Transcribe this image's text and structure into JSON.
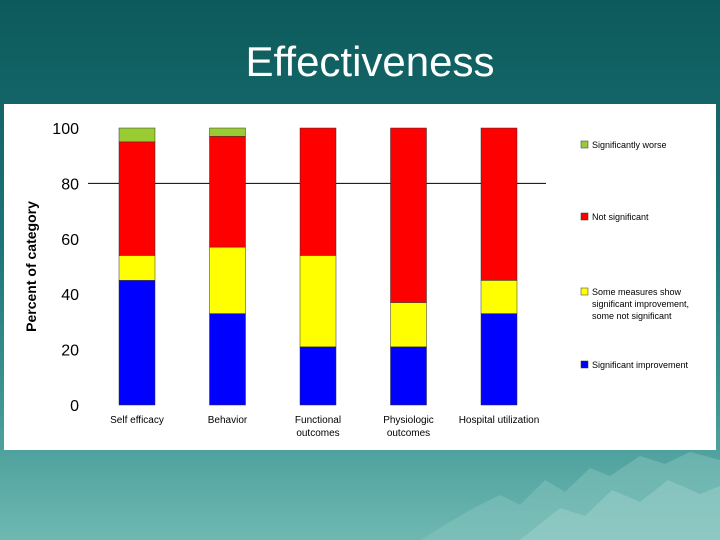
{
  "slide": {
    "title": "Effectiveness"
  },
  "chart_data": {
    "type": "bar",
    "stacked": true,
    "title": "",
    "xlabel": "",
    "ylabel": "Percent of category",
    "ylim": [
      0,
      100
    ],
    "yticks": [
      0,
      20,
      40,
      60,
      80,
      100
    ],
    "grid": false,
    "reference_line": 80,
    "legend_position": "right",
    "categories": [
      "Self efficacy",
      "Behavior",
      "Functional outcomes",
      "Physiologic outcomes",
      "Hospital utilization"
    ],
    "category_lines": [
      [
        "Self efficacy"
      ],
      [
        "Behavior"
      ],
      [
        "Functional",
        "outcomes"
      ],
      [
        "Physiologic",
        "outcomes"
      ],
      [
        "Hospital utilization"
      ]
    ],
    "series": [
      {
        "name": "Significant improvement",
        "color": "#0000ff",
        "values": [
          45,
          33,
          21,
          21,
          33
        ]
      },
      {
        "name": "Some measures show significant improvement, some not significant",
        "color": "#ffff00",
        "values": [
          9,
          24,
          33,
          16,
          12
        ]
      },
      {
        "name": "Not significant",
        "color": "#ff0000",
        "values": [
          41,
          40,
          46,
          63,
          55
        ]
      },
      {
        "name": "Significantly worse",
        "color": "#99cc33",
        "values": [
          5,
          3,
          0,
          0,
          0
        ]
      }
    ],
    "legend": [
      {
        "series": 3,
        "lines": [
          "Significantly worse"
        ]
      },
      {
        "series": 2,
        "lines": [
          "Not significant"
        ]
      },
      {
        "series": 1,
        "lines": [
          "Some measures show",
          "significant improvement,",
          "some not significant"
        ]
      },
      {
        "series": 0,
        "lines": [
          "Significant improvement"
        ]
      }
    ]
  }
}
